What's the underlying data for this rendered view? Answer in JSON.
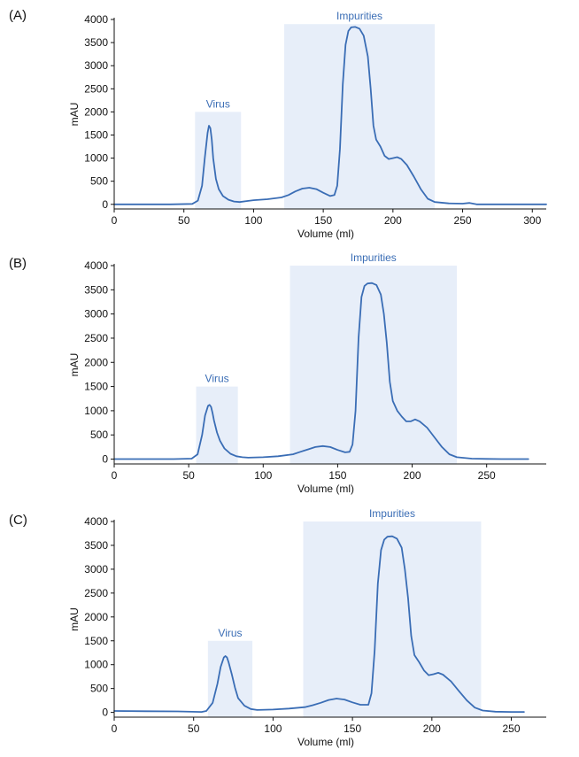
{
  "colors": {
    "trace": "#3a6db5",
    "region_fill": "#e7eef9",
    "region_label": "#3a6db5",
    "axis": "#111111"
  },
  "chart_data": [
    {
      "type": "line",
      "panel_label": "(A)",
      "xlabel": "Volume (ml)",
      "ylabel": "mAU",
      "xlim": [
        0,
        310
      ],
      "ylim": [
        -100,
        4000
      ],
      "xticks": [
        0,
        50,
        100,
        150,
        200,
        250,
        300
      ],
      "yticks": [
        0,
        500,
        1000,
        1500,
        2000,
        2500,
        3000,
        3500,
        4000
      ],
      "regions": [
        {
          "label": "Virus",
          "x": [
            58,
            91
          ],
          "y_top": 2000
        },
        {
          "label": "Impurities",
          "x": [
            122,
            230
          ],
          "y_top": 3900
        }
      ],
      "series": [
        {
          "x": [
            0,
            20,
            40,
            56,
            60,
            63,
            65,
            67,
            68,
            69,
            70,
            71,
            73,
            75,
            78,
            82,
            86,
            90,
            95,
            100,
            110,
            120,
            125,
            130,
            135,
            140,
            145,
            150,
            155,
            158,
            160,
            162,
            164,
            166,
            168,
            170,
            173,
            176,
            179,
            182,
            184,
            186,
            188,
            191,
            194,
            197,
            200,
            203,
            206,
            210,
            215,
            220,
            225,
            230,
            240,
            250,
            255,
            260,
            280,
            310
          ],
          "y": [
            0,
            0,
            0,
            10,
            80,
            400,
            1000,
            1550,
            1700,
            1650,
            1400,
            1000,
            550,
            330,
            180,
            100,
            60,
            50,
            70,
            90,
            110,
            150,
            200,
            280,
            340,
            360,
            330,
            250,
            180,
            200,
            400,
            1200,
            2600,
            3450,
            3750,
            3830,
            3840,
            3800,
            3650,
            3200,
            2500,
            1700,
            1400,
            1250,
            1050,
            980,
            1000,
            1020,
            980,
            850,
            600,
            330,
            120,
            50,
            20,
            15,
            30,
            0,
            0,
            0
          ]
        }
      ]
    },
    {
      "type": "line",
      "panel_label": "(B)",
      "xlabel": "Volume (ml)",
      "ylabel": "mAU",
      "xlim": [
        0,
        290
      ],
      "ylim": [
        -100,
        4000
      ],
      "xticks": [
        0,
        50,
        100,
        150,
        200,
        250
      ],
      "yticks": [
        0,
        500,
        1000,
        1500,
        2000,
        2500,
        3000,
        3500,
        4000
      ],
      "regions": [
        {
          "label": "Virus",
          "x": [
            55,
            83
          ],
          "y_top": 1500
        },
        {
          "label": "Impurities",
          "x": [
            118,
            230
          ],
          "y_top": 4000
        }
      ],
      "series": [
        {
          "x": [
            0,
            20,
            40,
            52,
            56,
            59,
            61,
            63,
            64,
            65,
            66,
            67,
            69,
            71,
            74,
            78,
            82,
            86,
            90,
            100,
            110,
            120,
            125,
            130,
            135,
            140,
            145,
            150,
            155,
            158,
            160,
            162,
            164,
            166,
            168,
            170,
            173,
            176,
            179,
            181,
            183,
            185,
            187,
            190,
            193,
            196,
            199,
            202,
            205,
            210,
            215,
            220,
            225,
            230,
            240,
            250,
            260,
            270,
            278
          ],
          "y": [
            0,
            0,
            0,
            10,
            100,
            500,
            900,
            1100,
            1120,
            1080,
            950,
            800,
            550,
            380,
            220,
            110,
            60,
            40,
            30,
            40,
            60,
            100,
            150,
            200,
            250,
            270,
            250,
            190,
            140,
            150,
            300,
            1000,
            2500,
            3350,
            3580,
            3630,
            3640,
            3600,
            3400,
            3000,
            2400,
            1600,
            1200,
            1000,
            880,
            780,
            780,
            820,
            780,
            650,
            450,
            250,
            100,
            40,
            10,
            5,
            0,
            0,
            0
          ]
        }
      ]
    },
    {
      "type": "line",
      "panel_label": "(C)",
      "xlabel": "Volume (ml)",
      "ylabel": "mAU",
      "xlim": [
        0,
        272
      ],
      "ylim": [
        -100,
        4000
      ],
      "xticks": [
        0,
        50,
        100,
        150,
        200,
        250
      ],
      "yticks": [
        0,
        500,
        1000,
        1500,
        2000,
        2500,
        3000,
        3500,
        4000
      ],
      "regions": [
        {
          "label": "Virus",
          "x": [
            59,
            87
          ],
          "y_top": 1500
        },
        {
          "label": "Impurities",
          "x": [
            119,
            231
          ],
          "y_top": 4000
        }
      ],
      "series": [
        {
          "x": [
            0,
            20,
            40,
            55,
            58,
            62,
            65,
            67,
            69,
            70,
            71,
            72,
            74,
            76,
            78,
            82,
            86,
            90,
            95,
            100,
            110,
            120,
            125,
            130,
            135,
            140,
            145,
            150,
            155,
            160,
            162,
            164,
            166,
            168,
            170,
            172,
            175,
            178,
            181,
            183,
            185,
            187,
            189,
            192,
            195,
            198,
            201,
            204,
            207,
            212,
            217,
            222,
            227,
            232,
            240,
            250,
            258
          ],
          "y": [
            30,
            25,
            20,
            10,
            30,
            200,
            600,
            950,
            1150,
            1180,
            1150,
            1050,
            800,
            520,
            300,
            140,
            70,
            50,
            55,
            60,
            80,
            110,
            150,
            200,
            260,
            290,
            270,
            210,
            160,
            160,
            400,
            1300,
            2700,
            3400,
            3620,
            3680,
            3690,
            3640,
            3450,
            3000,
            2400,
            1600,
            1200,
            1050,
            880,
            780,
            800,
            830,
            790,
            650,
            450,
            250,
            100,
            40,
            15,
            10,
            10
          ]
        }
      ]
    }
  ]
}
